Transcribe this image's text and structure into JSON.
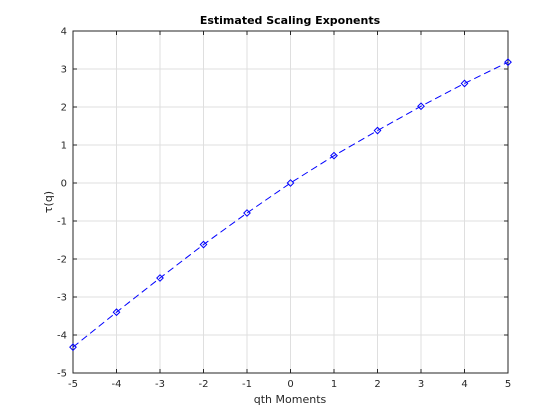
{
  "chart_data": {
    "type": "line",
    "title": "Estimated Scaling Exponents",
    "xlabel": "qth Moments",
    "ylabel": "τ(q)",
    "xlim": [
      -5,
      5
    ],
    "ylim": [
      -5,
      4
    ],
    "xticks": [
      -5,
      -4,
      -3,
      -2,
      -1,
      0,
      1,
      2,
      3,
      4,
      5
    ],
    "yticks": [
      -5,
      -4,
      -3,
      -2,
      -1,
      0,
      1,
      2,
      3,
      4
    ],
    "grid": true,
    "series": [
      {
        "x": [
          -5,
          -4,
          -3,
          -2,
          -1,
          0,
          1,
          2,
          3,
          4,
          5
        ],
        "y": [
          -4.32,
          -3.4,
          -2.5,
          -1.62,
          -0.79,
          0.0,
          0.72,
          1.38,
          2.02,
          2.62,
          3.18
        ],
        "color": "#0000ff",
        "line_style": "dashed",
        "marker": "diamond"
      }
    ]
  }
}
